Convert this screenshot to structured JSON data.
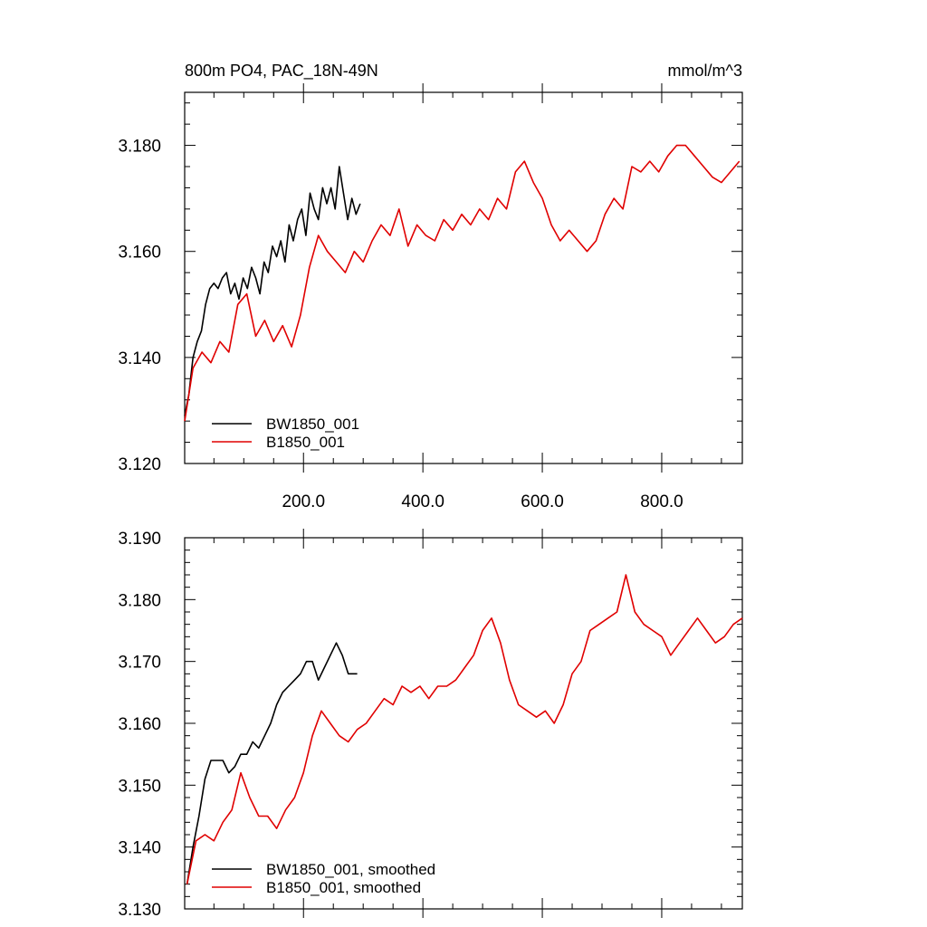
{
  "chart_data": [
    {
      "type": "line",
      "title": "800m PO4, PAC_18N-49N",
      "units": "mmol/m^3",
      "xlim": [
        1,
        935
      ],
      "ylim": [
        3.12,
        3.19
      ],
      "yticks": [
        "3.120",
        "3.140",
        "3.160",
        "3.180"
      ],
      "xticks": [
        "200.0",
        "400.0",
        "600.0",
        "800.0"
      ],
      "legend_placement": "bottom-left",
      "series": [
        {
          "name": "BW1850_001",
          "color": "#000000",
          "x": [
            1,
            8,
            15,
            22,
            29,
            36,
            43,
            50,
            57,
            64,
            71,
            78,
            85,
            92,
            99,
            106,
            113,
            120,
            127,
            134,
            141,
            148,
            155,
            162,
            169,
            176,
            183,
            190,
            197,
            204,
            211,
            218,
            225,
            232,
            239,
            246,
            253,
            260,
            267,
            274,
            281,
            288,
            295
          ],
          "y": [
            3.129,
            3.133,
            3.14,
            3.143,
            3.145,
            3.15,
            3.153,
            3.154,
            3.153,
            3.155,
            3.156,
            3.152,
            3.154,
            3.151,
            3.155,
            3.153,
            3.157,
            3.155,
            3.152,
            3.158,
            3.156,
            3.161,
            3.159,
            3.162,
            3.158,
            3.165,
            3.162,
            3.166,
            3.168,
            3.163,
            3.171,
            3.168,
            3.166,
            3.172,
            3.169,
            3.172,
            3.168,
            3.176,
            3.171,
            3.166,
            3.17,
            3.167,
            3.169
          ]
        },
        {
          "name": "B1850_001",
          "color": "#e00000",
          "x": [
            1,
            15,
            30,
            45,
            60,
            75,
            90,
            105,
            120,
            135,
            150,
            165,
            180,
            195,
            210,
            225,
            240,
            255,
            270,
            285,
            300,
            315,
            330,
            345,
            360,
            375,
            390,
            405,
            420,
            435,
            450,
            465,
            480,
            495,
            510,
            525,
            540,
            555,
            570,
            585,
            600,
            615,
            630,
            645,
            660,
            675,
            690,
            705,
            720,
            735,
            750,
            765,
            780,
            795,
            810,
            825,
            840,
            855,
            870,
            885,
            900,
            915,
            930
          ],
          "y": [
            3.128,
            3.138,
            3.141,
            3.139,
            3.143,
            3.141,
            3.15,
            3.152,
            3.144,
            3.147,
            3.143,
            3.146,
            3.142,
            3.148,
            3.157,
            3.163,
            3.16,
            3.158,
            3.156,
            3.16,
            3.158,
            3.162,
            3.165,
            3.163,
            3.168,
            3.161,
            3.165,
            3.163,
            3.162,
            3.166,
            3.164,
            3.167,
            3.165,
            3.168,
            3.166,
            3.17,
            3.168,
            3.175,
            3.177,
            3.173,
            3.17,
            3.165,
            3.162,
            3.164,
            3.162,
            3.16,
            3.162,
            3.167,
            3.17,
            3.168,
            3.176,
            3.175,
            3.177,
            3.175,
            3.178,
            3.18,
            3.18,
            3.178,
            3.176,
            3.174,
            3.173,
            3.175,
            3.177
          ]
        }
      ]
    },
    {
      "type": "line",
      "title": "",
      "xlim": [
        1,
        935
      ],
      "ylim": [
        3.13,
        3.19
      ],
      "yticks": [
        "3.130",
        "3.140",
        "3.150",
        "3.160",
        "3.170",
        "3.180",
        "3.190"
      ],
      "legend_placement": "bottom-left",
      "series": [
        {
          "name": "BW1850_001, smoothed",
          "color": "#000000",
          "x": [
            5,
            15,
            25,
            35,
            45,
            55,
            65,
            75,
            85,
            95,
            105,
            115,
            125,
            135,
            145,
            155,
            165,
            175,
            185,
            195,
            205,
            215,
            225,
            235,
            245,
            255,
            265,
            275,
            285,
            290
          ],
          "y": [
            3.134,
            3.14,
            3.145,
            3.151,
            3.154,
            3.154,
            3.154,
            3.152,
            3.153,
            3.155,
            3.155,
            3.157,
            3.156,
            3.158,
            3.16,
            3.163,
            3.165,
            3.166,
            3.167,
            3.168,
            3.17,
            3.17,
            3.167,
            3.169,
            3.171,
            3.173,
            3.171,
            3.168,
            3.168,
            3.168
          ]
        },
        {
          "name": "B1850_001, smoothed",
          "color": "#e00000",
          "x": [
            5,
            20,
            35,
            50,
            65,
            80,
            95,
            110,
            125,
            140,
            155,
            170,
            185,
            200,
            215,
            230,
            245,
            260,
            275,
            290,
            305,
            320,
            335,
            350,
            365,
            380,
            395,
            410,
            425,
            440,
            455,
            470,
            485,
            500,
            515,
            530,
            545,
            560,
            575,
            590,
            605,
            620,
            635,
            650,
            665,
            680,
            695,
            710,
            725,
            740,
            755,
            770,
            785,
            800,
            815,
            830,
            845,
            860,
            875,
            890,
            905,
            920,
            935
          ],
          "y": [
            3.134,
            3.141,
            3.142,
            3.141,
            3.144,
            3.146,
            3.152,
            3.148,
            3.145,
            3.145,
            3.143,
            3.146,
            3.148,
            3.152,
            3.158,
            3.162,
            3.16,
            3.158,
            3.157,
            3.159,
            3.16,
            3.162,
            3.164,
            3.163,
            3.166,
            3.165,
            3.166,
            3.164,
            3.166,
            3.166,
            3.167,
            3.169,
            3.171,
            3.175,
            3.177,
            3.173,
            3.167,
            3.163,
            3.162,
            3.161,
            3.162,
            3.16,
            3.163,
            3.168,
            3.17,
            3.175,
            3.176,
            3.177,
            3.178,
            3.184,
            3.178,
            3.176,
            3.175,
            3.174,
            3.171,
            3.173,
            3.175,
            3.177,
            3.175,
            3.173,
            3.174,
            3.176,
            3.177
          ]
        }
      ]
    }
  ]
}
